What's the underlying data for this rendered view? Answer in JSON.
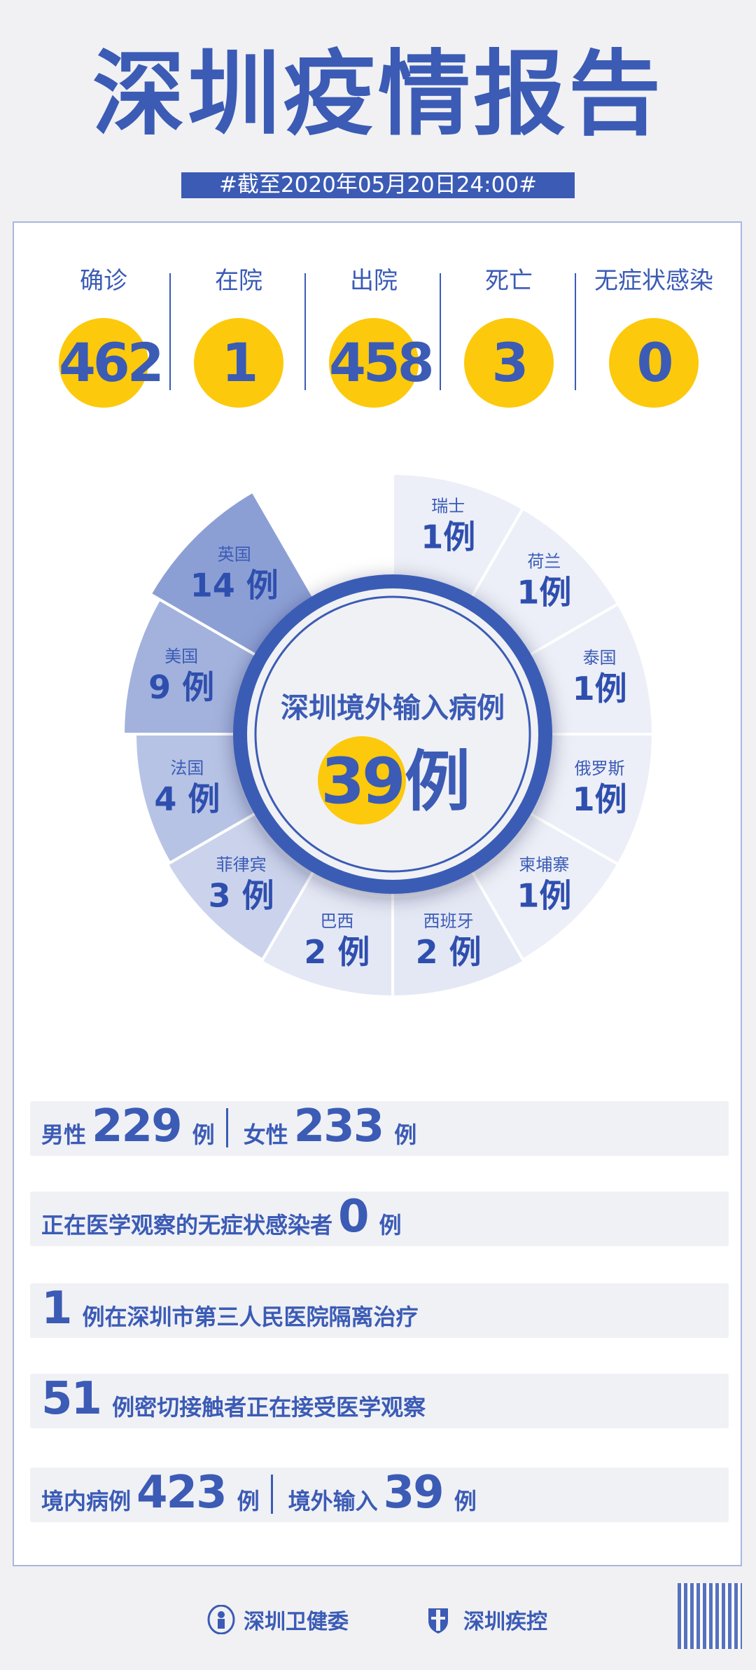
{
  "header": {
    "title": "深圳疫情报告",
    "date": "#截至2020年05月20日24:00#"
  },
  "stats": [
    {
      "label": "确诊",
      "value": "462"
    },
    {
      "label": "在院",
      "value": "1"
    },
    {
      "label": "出院",
      "value": "458"
    },
    {
      "label": "死亡",
      "value": "3"
    },
    {
      "label": "无症状感染",
      "value": "0"
    }
  ],
  "chart_data": {
    "type": "pie",
    "center_title": "深圳境外输入病例",
    "center_total": "39",
    "center_unit": "例",
    "unit": "例",
    "slices": [
      {
        "label": "瑞士",
        "value": 1,
        "color": "#eceff8"
      },
      {
        "label": "荷兰",
        "value": 1,
        "color": "#eceff8"
      },
      {
        "label": "泰国",
        "value": 1,
        "color": "#eceff8"
      },
      {
        "label": "俄罗斯",
        "value": 1,
        "color": "#eceff8"
      },
      {
        "label": "柬埔寨",
        "value": 1,
        "color": "#eceff8"
      },
      {
        "label": "西班牙",
        "value": 2,
        "color": "#e4e8f5"
      },
      {
        "label": "巴西",
        "value": 2,
        "color": "#e4e8f5"
      },
      {
        "label": "菲律宾",
        "value": 3,
        "color": "#cbd3ec"
      },
      {
        "label": "法国",
        "value": 4,
        "color": "#b7c3e5"
      },
      {
        "label": "美国",
        "value": 9,
        "color": "#a2b2dd"
      },
      {
        "label": "英国",
        "value": 14,
        "color": "#8c9fd5"
      }
    ]
  },
  "rows": {
    "gender": {
      "male_label": "男性",
      "male": "229",
      "female_label": "女性",
      "female": "233",
      "unit": "例"
    },
    "asymptomatic": {
      "text": "正在医学观察的无症状感染者",
      "value": "0",
      "unit": "例"
    },
    "hospital": {
      "value": "1",
      "text": "例在深圳市第三人民医院隔离治疗"
    },
    "contacts": {
      "value": "51",
      "text": "例密切接触者正在接受医学观察"
    },
    "origin": {
      "domestic_label": "境内病例",
      "domestic": "423",
      "imported_label": "境外输入",
      "imported": "39",
      "unit": "例"
    }
  },
  "footer": {
    "org1": "深圳卫健委",
    "org2": "深圳疾控"
  },
  "colors": {
    "primary": "#3b5bb5",
    "accent": "#fcc90c"
  }
}
